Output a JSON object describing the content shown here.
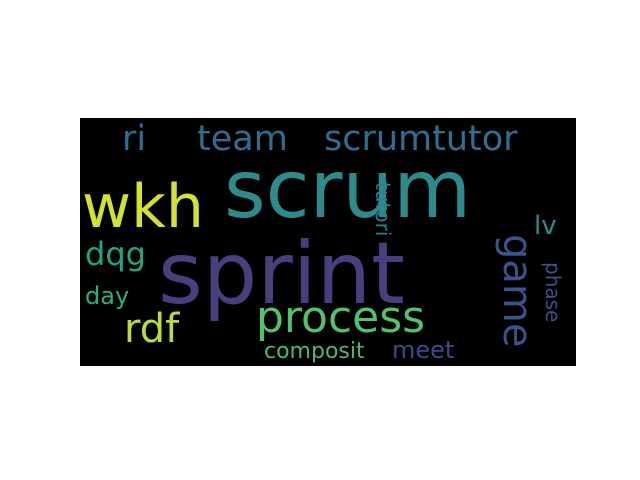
{
  "word_cloud": {
    "background_color": "#000000",
    "words": [
      {
        "text": "sprint",
        "color": "#46407f",
        "rotation": 0
      },
      {
        "text": "scrum",
        "color": "#2d8b8c",
        "rotation": 0
      },
      {
        "text": "wkh",
        "color": "#d6e030",
        "rotation": 0
      },
      {
        "text": "process",
        "color": "#52c36a",
        "rotation": 0
      },
      {
        "text": "rdf",
        "color": "#b7dc3f",
        "rotation": 0
      },
      {
        "text": "game",
        "color": "#3b528b",
        "rotation": 90
      },
      {
        "text": "ri",
        "color": "#2f6e8e",
        "rotation": 0
      },
      {
        "text": "team",
        "color": "#2f6e8e",
        "rotation": 0
      },
      {
        "text": "scrumtutor",
        "color": "#2f6e8e",
        "rotation": 0
      },
      {
        "text": "dqg",
        "color": "#21a585",
        "rotation": 0
      },
      {
        "text": "day",
        "color": "#29ae80",
        "rotation": 0
      },
      {
        "text": "lv",
        "color": "#2c8c8d",
        "rotation": 0
      },
      {
        "text": "tutori",
        "color": "#287e8e",
        "rotation": 90
      },
      {
        "text": "phase",
        "color": "#3d4f8a",
        "rotation": 90
      },
      {
        "text": "composit",
        "color": "#4ab96f",
        "rotation": 0
      },
      {
        "text": "meet",
        "color": "#3e4a89",
        "rotation": 0
      }
    ]
  }
}
